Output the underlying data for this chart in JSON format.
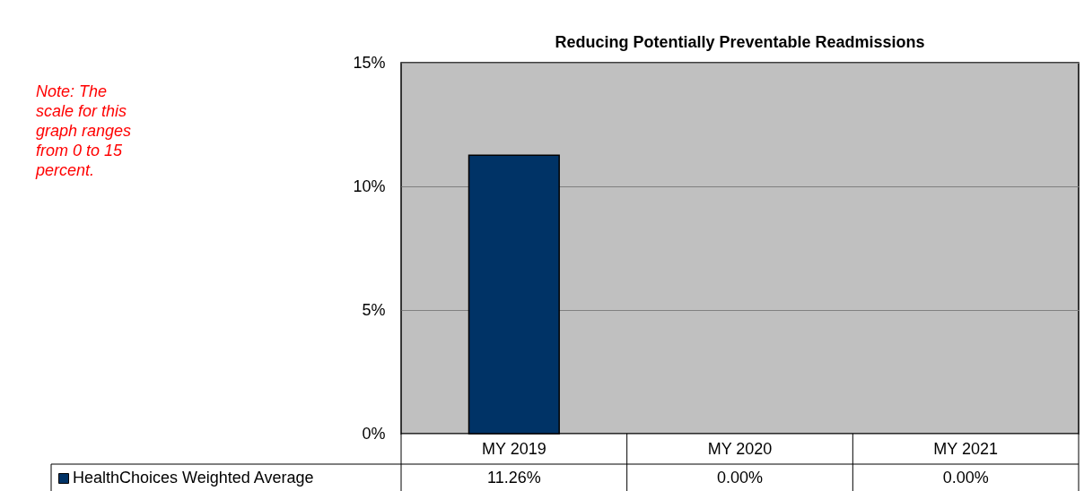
{
  "chart_data": {
    "type": "bar",
    "title": "Reducing Potentially Preventable Readmissions",
    "categories": [
      "MY 2019",
      "MY 2020",
      "MY 2021"
    ],
    "series": [
      {
        "name": "HealthChoices Weighted Average",
        "color": "#003366",
        "values": [
          11.26,
          0.0,
          0.0
        ],
        "value_labels": [
          "11.26%",
          "0.00%",
          "0.00%"
        ]
      }
    ],
    "ylim": [
      0,
      15
    ],
    "yticks": [
      {
        "value": 0,
        "label": "0%"
      },
      {
        "value": 5,
        "label": "5%"
      },
      {
        "value": 10,
        "label": "10%"
      },
      {
        "value": 15,
        "label": "15%"
      }
    ],
    "grid": "y",
    "legend": "bottom left",
    "annotations": [
      "Note: The scale for this graph ranges from 0 to 15 percent."
    ]
  }
}
